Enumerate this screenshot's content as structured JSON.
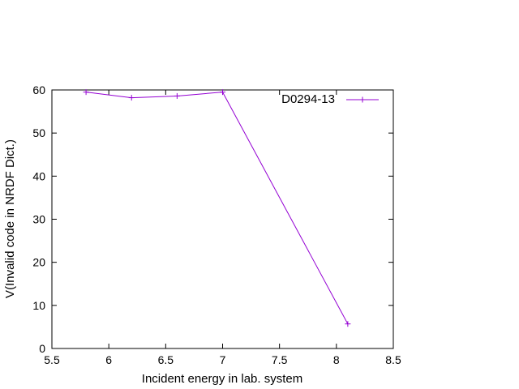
{
  "chart_data": {
    "type": "line",
    "title": "",
    "xlabel": "Incident energy in lab. system",
    "ylabel": "V(Invalid code in NRDF Dict.)",
    "xlim": [
      5.5,
      8.5
    ],
    "ylim": [
      0,
      60
    ],
    "xticks": [
      "5.5",
      "6",
      "6.5",
      "7",
      "7.5",
      "8",
      "8.5"
    ],
    "yticks": [
      "0",
      "10",
      "20",
      "30",
      "40",
      "50",
      "60"
    ],
    "grid": false,
    "legend_position": "top-right",
    "series": [
      {
        "name": "D0294-13",
        "color": "#9400d3",
        "marker": "plus",
        "x": [
          5.8,
          6.2,
          6.6,
          7.0,
          8.1
        ],
        "y": [
          59.5,
          58.2,
          58.6,
          59.5,
          5.7
        ]
      }
    ]
  }
}
